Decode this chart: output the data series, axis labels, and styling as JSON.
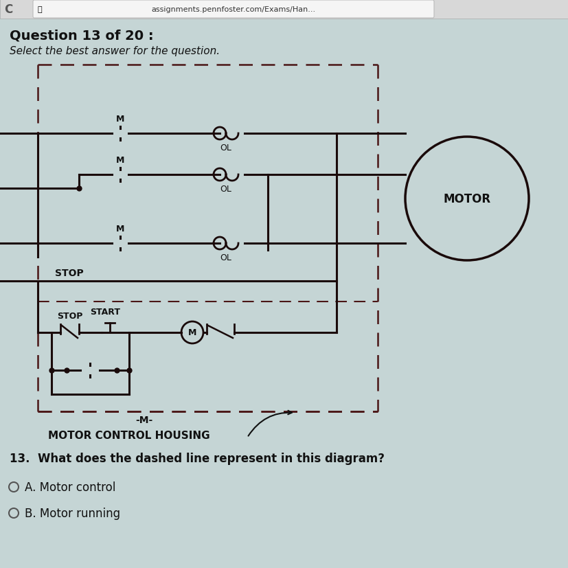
{
  "bg_color": "#c5d5d5",
  "page_bg": "#c5d5d5",
  "browser_bg": "#e0e0e0",
  "url_text": "assignments.pennfoster.com/Exams/Han...",
  "question_text": "Question 13 of 20 :",
  "subtitle_text": "Select the best answer for the question.",
  "question_line": "13.  What does the dashed line represent in this diagram?",
  "answer_a": "A. Motor control",
  "answer_b": "B. Motor running",
  "motor_label": "MOTOR",
  "housing_label": "MOTOR CONTROL HOUSING",
  "line_color": "#1a0a0a",
  "dashed_color": "#4a1515",
  "text_color": "#111111",
  "diagram_bg": "#d8e8e8"
}
